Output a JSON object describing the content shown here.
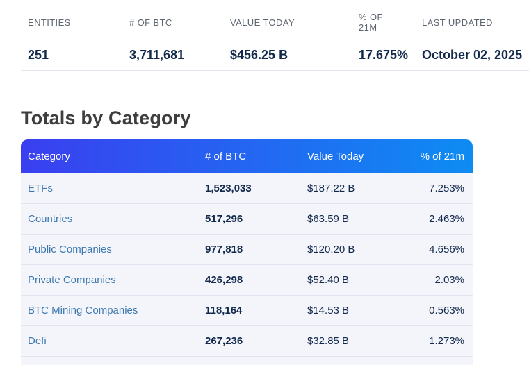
{
  "summary": {
    "stats": [
      {
        "label": "ENTITIES",
        "value": "251"
      },
      {
        "label": "# OF BTC",
        "value": "3,711,681"
      },
      {
        "label": "VALUE TODAY",
        "value": "$456.25 B"
      },
      {
        "label": "% OF 21M",
        "value": "17.675%"
      },
      {
        "label": "LAST UPDATED",
        "value": "October 02, 2025"
      }
    ]
  },
  "section": {
    "title": "Totals by Category"
  },
  "table": {
    "columns": [
      "Category",
      "# of BTC",
      "Value Today",
      "% of 21m"
    ],
    "rows": [
      {
        "category": "ETFs",
        "btc": "1,523,033",
        "value": "$187.22 B",
        "pct": "7.253%"
      },
      {
        "category": "Countries",
        "btc": "517,296",
        "value": "$63.59 B",
        "pct": "2.463%"
      },
      {
        "category": "Public Companies",
        "btc": "977,818",
        "value": "$120.20 B",
        "pct": "4.656%"
      },
      {
        "category": "Private Companies",
        "btc": "426,298",
        "value": "$52.40 B",
        "pct": "2.03%"
      },
      {
        "category": "BTC Mining Companies",
        "btc": "118,164",
        "value": "$14.53 B",
        "pct": "0.563%"
      },
      {
        "category": "Defi",
        "btc": "267,236",
        "value": "$32.85 B",
        "pct": "1.273%"
      }
    ]
  },
  "colors": {
    "header_gradient_left": "#3a3ff0",
    "header_gradient_right": "#0e8cf3",
    "header_text": "#ffffff",
    "row_background": "#f3f5fb",
    "row_separator": "#e2e5f1",
    "category_link": "#3d79af",
    "value_navy": "#13294b",
    "label_gray": "#5d6670",
    "heading_gray": "#3e3e3e"
  }
}
